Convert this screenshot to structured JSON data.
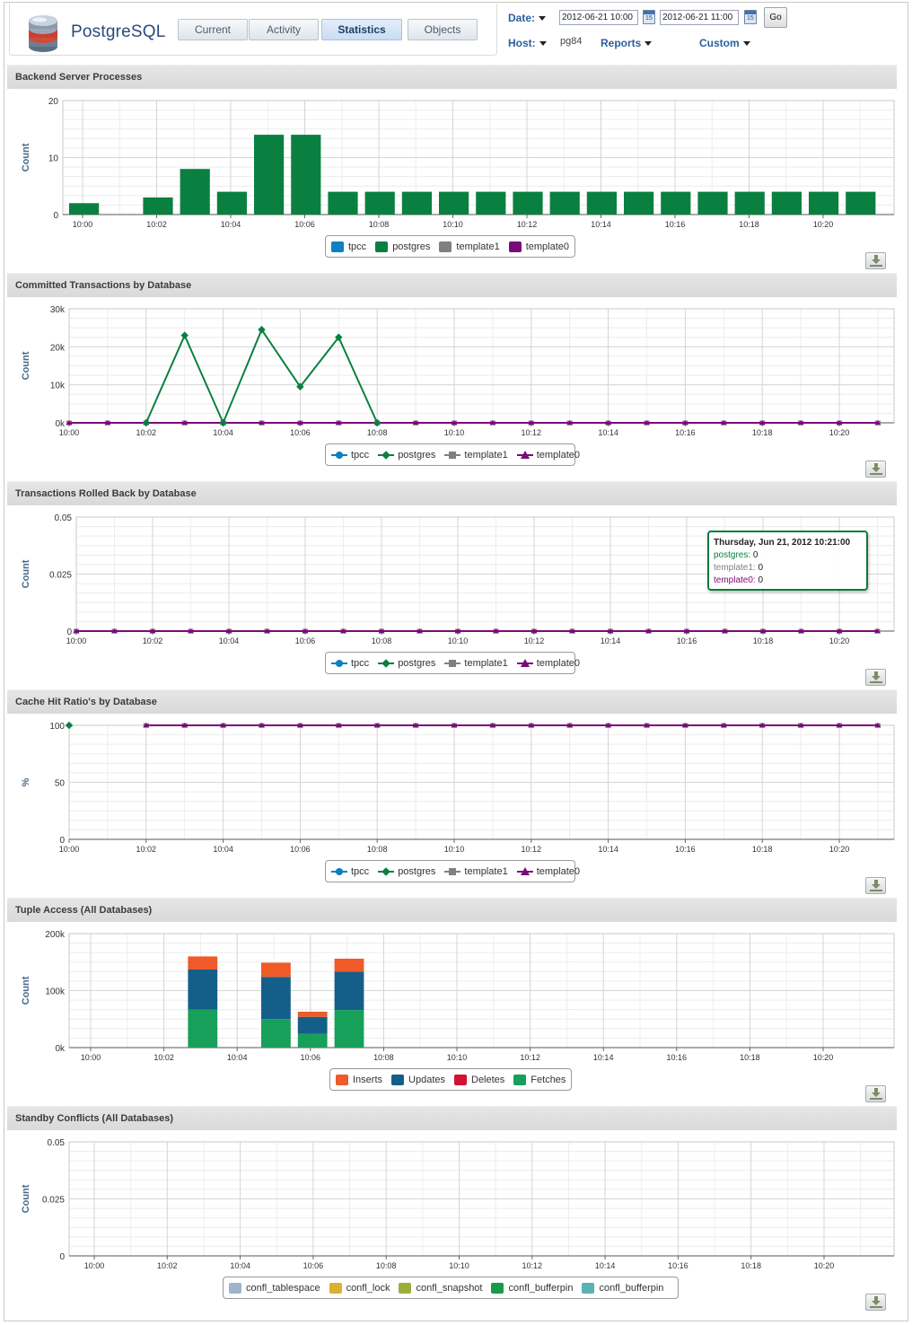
{
  "header": {
    "logo_text": "PostgreSQL",
    "tabs": [
      {
        "label": "Current",
        "active": false
      },
      {
        "label": "Activity",
        "active": false
      },
      {
        "label": "Statistics",
        "active": true
      },
      {
        "label": "Objects",
        "active": false
      }
    ],
    "date_label": "Date:",
    "date_from": "2012-06-21 10:00",
    "date_to": "2012-06-21 11:00",
    "go_label": "Go",
    "host_label": "Host:",
    "host_value": "pg84",
    "reports_label": "Reports",
    "custom_label": "Custom",
    "calendar_glyph": "15"
  },
  "colors": {
    "tpcc": "#0d7fc2",
    "postgres": "#0a8040",
    "template1": "#808080",
    "template0": "#7a0a7a",
    "inserts": "#f05a28",
    "updates": "#145f8a",
    "deletes": "#d41034",
    "fetches": "#16a05a"
  },
  "charts": [
    {
      "id": "backend",
      "title": "Backend Server Processes",
      "chart_data": {
        "type": "bar",
        "ylabel": "Count",
        "ylim": [
          0,
          20
        ],
        "yticks": [
          "0",
          "10",
          "20"
        ],
        "x_tick_labels": [
          "10:00",
          "10:02",
          "10:04",
          "10:06",
          "10:08",
          "10:10",
          "10:12",
          "10:14",
          "10:16",
          "10:18",
          "10:20"
        ],
        "series": [
          {
            "name": "tpcc",
            "color": "#0d7fc2",
            "values": []
          },
          {
            "name": "postgres",
            "color": "#0a8040",
            "values": [
              2,
              0,
              3,
              8,
              4,
              14,
              14,
              4,
              4,
              4,
              4,
              4,
              4,
              4,
              4,
              4,
              4,
              4,
              4,
              4,
              4,
              4
            ]
          },
          {
            "name": "template1",
            "color": "#808080",
            "values": []
          },
          {
            "name": "template0",
            "color": "#7a0a7a",
            "values": []
          }
        ]
      },
      "legend": [
        {
          "label": "tpcc",
          "color": "#0d7fc2"
        },
        {
          "label": "postgres",
          "color": "#0a8040"
        },
        {
          "label": "template1",
          "color": "#808080"
        },
        {
          "label": "template0",
          "color": "#7a0a7a"
        }
      ]
    },
    {
      "id": "committed",
      "title": "Committed Transactions by Database",
      "chart_data": {
        "type": "line",
        "ylabel": "Count",
        "ylim": [
          0,
          30000
        ],
        "yticks": [
          "0k",
          "10k",
          "20k",
          "30k"
        ],
        "x_tick_labels": [
          "10:00",
          "10:02",
          "10:04",
          "10:06",
          "10:08",
          "10:10",
          "10:12",
          "10:14",
          "10:16",
          "10:18",
          "10:20"
        ],
        "series": [
          {
            "name": "tpcc",
            "color": "#0d7fc2",
            "marker": "circle",
            "values": []
          },
          {
            "name": "postgres",
            "color": "#0a8040",
            "marker": "diamond",
            "values": [
              null,
              null,
              0,
              23000,
              0,
              24500,
              9500,
              22500,
              0,
              null,
              null,
              null,
              null,
              null,
              null,
              null,
              null,
              null,
              null,
              null,
              null,
              null
            ]
          },
          {
            "name": "template1",
            "color": "#808080",
            "marker": "square",
            "values": [
              0,
              0,
              0,
              0,
              0,
              0,
              0,
              0,
              0,
              0,
              0,
              0,
              0,
              0,
              0,
              0,
              0,
              0,
              0,
              0,
              0,
              0
            ]
          },
          {
            "name": "template0",
            "color": "#7a0a7a",
            "marker": "triangle",
            "values": [
              0,
              0,
              0,
              0,
              0,
              0,
              0,
              0,
              0,
              0,
              0,
              0,
              0,
              0,
              0,
              0,
              0,
              0,
              0,
              0,
              0,
              0
            ]
          }
        ]
      },
      "legend": [
        {
          "label": "tpcc",
          "color": "#0d7fc2",
          "marker": "circle"
        },
        {
          "label": "postgres",
          "color": "#0a8040",
          "marker": "diamond"
        },
        {
          "label": "template1",
          "color": "#808080",
          "marker": "square"
        },
        {
          "label": "template0",
          "color": "#7a0a7a",
          "marker": "triangle"
        }
      ]
    },
    {
      "id": "rolledback",
      "title": "Transactions Rolled Back by Database",
      "chart_data": {
        "type": "line",
        "ylabel": "Count",
        "ylim": [
          0,
          0.05
        ],
        "yticks": [
          "0",
          "0.025",
          "0.05"
        ],
        "x_tick_labels": [
          "10:00",
          "10:02",
          "10:04",
          "10:06",
          "10:08",
          "10:10",
          "10:12",
          "10:14",
          "10:16",
          "10:18",
          "10:20"
        ],
        "series": [
          {
            "name": "tpcc",
            "color": "#0d7fc2",
            "marker": "circle",
            "values": []
          },
          {
            "name": "postgres",
            "color": "#0a8040",
            "marker": "diamond",
            "values": []
          },
          {
            "name": "template1",
            "color": "#808080",
            "marker": "square",
            "values": [
              0,
              0,
              0,
              0,
              0,
              0,
              0,
              0,
              0,
              0,
              0,
              0,
              0,
              0,
              0,
              0,
              0,
              0,
              0,
              0,
              0,
              0
            ]
          },
          {
            "name": "template0",
            "color": "#7a0a7a",
            "marker": "triangle",
            "values": [
              0,
              0,
              0,
              0,
              0,
              0,
              0,
              0,
              0,
              0,
              0,
              0,
              0,
              0,
              0,
              0,
              0,
              0,
              0,
              0,
              0,
              0
            ]
          }
        ]
      },
      "tooltip": {
        "title": "Thursday, Jun 21, 2012 10:21:00",
        "rows": [
          {
            "label": "postgres:",
            "value": "0",
            "color": "#0a8040"
          },
          {
            "label": "template1:",
            "value": "0",
            "color": "#808080"
          },
          {
            "label": "template0:",
            "value": "0",
            "color": "#7a0a7a"
          }
        ]
      },
      "legend": [
        {
          "label": "tpcc",
          "color": "#0d7fc2",
          "marker": "circle"
        },
        {
          "label": "postgres",
          "color": "#0a8040",
          "marker": "diamond"
        },
        {
          "label": "template1",
          "color": "#808080",
          "marker": "square"
        },
        {
          "label": "template0",
          "color": "#7a0a7a",
          "marker": "triangle"
        }
      ]
    },
    {
      "id": "cachehit",
      "title": "Cache Hit Ratio's by Database",
      "chart_data": {
        "type": "line",
        "ylabel": "%",
        "ylim": [
          0,
          100
        ],
        "yticks": [
          "0",
          "50",
          "100"
        ],
        "x_tick_labels": [
          "10:00",
          "10:02",
          "10:04",
          "10:06",
          "10:08",
          "10:10",
          "10:12",
          "10:14",
          "10:16",
          "10:18",
          "10:20"
        ],
        "series": [
          {
            "name": "tpcc",
            "color": "#0d7fc2",
            "marker": "circle",
            "values": []
          },
          {
            "name": "postgres",
            "color": "#0a8040",
            "marker": "diamond",
            "values": [
              100
            ]
          },
          {
            "name": "template1",
            "color": "#808080",
            "marker": "square",
            "values": [
              null,
              null,
              100,
              100,
              100,
              100,
              100,
              100,
              100,
              100,
              100,
              100,
              100,
              100,
              100,
              100,
              100,
              100,
              100,
              100,
              100,
              100
            ]
          },
          {
            "name": "template0",
            "color": "#7a0a7a",
            "marker": "triangle",
            "values": [
              null,
              null,
              100,
              100,
              100,
              100,
              100,
              100,
              100,
              100,
              100,
              100,
              100,
              100,
              100,
              100,
              100,
              100,
              100,
              100,
              100,
              100
            ]
          }
        ]
      },
      "legend": [
        {
          "label": "tpcc",
          "color": "#0d7fc2",
          "marker": "circle"
        },
        {
          "label": "postgres",
          "color": "#0a8040",
          "marker": "diamond"
        },
        {
          "label": "template1",
          "color": "#808080",
          "marker": "square"
        },
        {
          "label": "template0",
          "color": "#7a0a7a",
          "marker": "triangle"
        }
      ]
    },
    {
      "id": "tuple",
      "title": "Tuple Access (All Databases)",
      "chart_data": {
        "type": "bar",
        "stacked": true,
        "ylabel": "Count",
        "ylim": [
          0,
          200000
        ],
        "yticks": [
          "0k",
          "100k",
          "200k"
        ],
        "x_tick_labels": [
          "10:00",
          "10:02",
          "10:04",
          "10:06",
          "10:08",
          "10:10",
          "10:12",
          "10:14",
          "10:16",
          "10:18",
          "10:20"
        ],
        "series": [
          {
            "name": "Fetches",
            "color": "#16a05a",
            "values": [
              null,
              null,
              null,
              67000,
              null,
              50000,
              24000,
              66000,
              null,
              null,
              null,
              null,
              null,
              null,
              null,
              null,
              null,
              null,
              null,
              null,
              null,
              null
            ]
          },
          {
            "name": "Deletes",
            "color": "#d41034",
            "values": [
              null,
              null,
              null,
              0,
              null,
              0,
              0,
              0,
              null,
              null,
              null,
              null,
              null,
              null,
              null,
              null,
              null,
              null,
              null,
              null,
              null,
              null
            ]
          },
          {
            "name": "Updates",
            "color": "#145f8a",
            "values": [
              null,
              null,
              null,
              70000,
              null,
              74000,
              30000,
              67000,
              null,
              null,
              null,
              null,
              null,
              null,
              null,
              null,
              null,
              null,
              null,
              null,
              null,
              null
            ]
          },
          {
            "name": "Inserts",
            "color": "#f05a28",
            "values": [
              null,
              null,
              null,
              23000,
              null,
              25000,
              9000,
              23000,
              null,
              null,
              null,
              null,
              null,
              null,
              null,
              null,
              null,
              null,
              null,
              null,
              null,
              null
            ]
          }
        ]
      },
      "legend": [
        {
          "label": "Inserts",
          "color": "#f05a28"
        },
        {
          "label": "Updates",
          "color": "#145f8a"
        },
        {
          "label": "Deletes",
          "color": "#d41034"
        },
        {
          "label": "Fetches",
          "color": "#16a05a"
        }
      ]
    },
    {
      "id": "standby",
      "title": "Standby Conflicts (All Databases)",
      "chart_data": {
        "type": "bar",
        "ylabel": "Count",
        "ylim": [
          0,
          0.05
        ],
        "yticks": [
          "0",
          "0.025",
          "0.05"
        ],
        "x_tick_labels": [
          "10:00",
          "10:02",
          "10:04",
          "10:06",
          "10:08",
          "10:10",
          "10:12",
          "10:14",
          "10:16",
          "10:18",
          "10:20"
        ],
        "series": [
          {
            "name": "confl_tablespace",
            "color": "#9fb4c9",
            "values": []
          },
          {
            "name": "confl_lock",
            "color": "#d9b234",
            "values": []
          },
          {
            "name": "confl_snapshot",
            "color": "#9aae3b",
            "values": []
          },
          {
            "name": "confl_bufferpin",
            "color": "#1a9a4a",
            "values": []
          },
          {
            "name": "confl_bufferpin",
            "color": "#5bb2b0",
            "values": []
          }
        ]
      },
      "legend": [
        {
          "label": "confl_tablespace",
          "color": "#9fb4c9"
        },
        {
          "label": "confl_lock",
          "color": "#d9b234"
        },
        {
          "label": "confl_snapshot",
          "color": "#9aae3b"
        },
        {
          "label": "confl_bufferpin",
          "color": "#1a9a4a"
        },
        {
          "label": "confl_bufferpin",
          "color": "#5bb2b0"
        }
      ]
    }
  ]
}
